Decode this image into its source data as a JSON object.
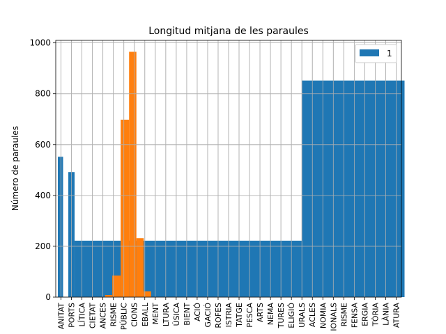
{
  "chart_data": {
    "type": "bar",
    "title": "Longitud mitjana de les paraules",
    "xlabel": "",
    "ylabel": "Número de paraules",
    "ylim": [
      0,
      1010
    ],
    "yticks": [
      0,
      200,
      400,
      600,
      800,
      1000
    ],
    "grid": true,
    "legend": {
      "position": "top-right",
      "entries": [
        "1"
      ]
    },
    "categories": [
      "ANITAT",
      "PORTS",
      "LÍTICA",
      "CIETAT",
      "ANCES",
      "RISME",
      "PÚBLIC",
      "CIONS",
      "EBALL",
      "MENT",
      "LTURA",
      "ÚSICA",
      "BIENT",
      "ACIÓ",
      "GACIÓ",
      "ROFES",
      "ISTRIA",
      "TATGE",
      "PESCA",
      "ARTS",
      "NEMA",
      "TURES",
      "ELIGIÓ",
      "URALS",
      "ACLES",
      "NOMIA",
      "IONALS",
      "RISME",
      "FENSA",
      "ERGIA",
      "TÒRIA",
      "LÀNIA",
      "ATURA"
    ],
    "series": [
      {
        "name": "1",
        "color": "#1f77b4",
        "bars": [
          {
            "from": -0.3,
            "to": 0.2,
            "value": 552
          },
          {
            "from": 0.7,
            "to": 1.3,
            "value": 492
          },
          {
            "from": 1.3,
            "to": 23.0,
            "value": 222
          },
          {
            "from": 23.0,
            "to": 32.8,
            "value": 852
          }
        ]
      },
      {
        "name": "",
        "color": "#ff7f0e",
        "bars": [
          {
            "from": 4.2,
            "to": 4.9,
            "value": 8
          },
          {
            "from": 4.9,
            "to": 5.7,
            "value": 85
          },
          {
            "from": 5.7,
            "to": 6.5,
            "value": 698
          },
          {
            "from": 6.5,
            "to": 7.2,
            "value": 965
          },
          {
            "from": 7.2,
            "to": 7.9,
            "value": 232
          },
          {
            "from": 7.9,
            "to": 8.6,
            "value": 23
          }
        ]
      }
    ]
  }
}
